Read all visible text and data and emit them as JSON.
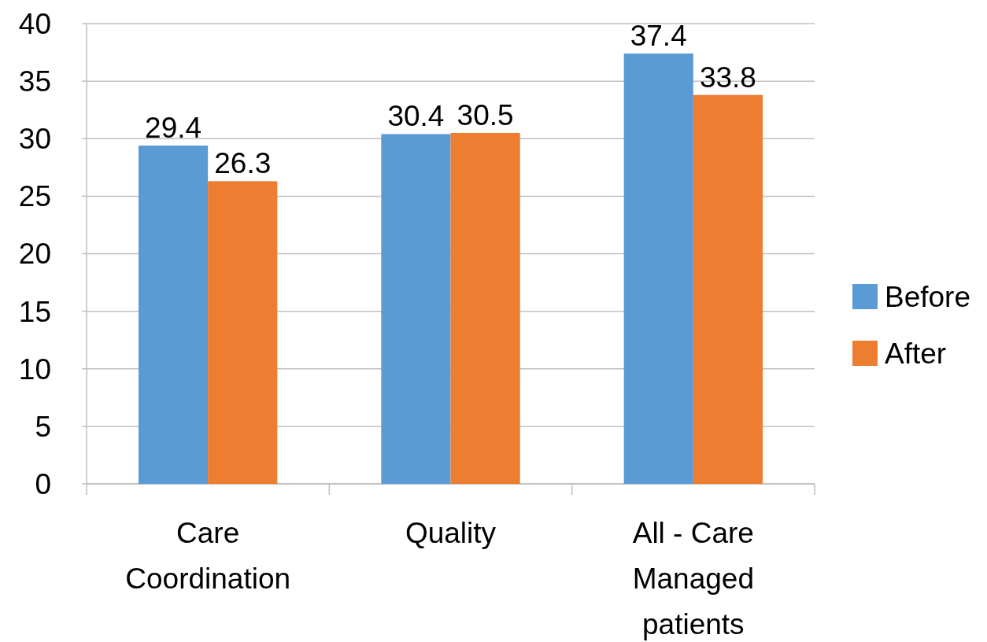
{
  "chart_data": {
    "type": "bar",
    "categories": [
      "Care Coordination",
      "Quality",
      "All - Care Managed patients"
    ],
    "series": [
      {
        "name": "Before",
        "color": "#5b9bd5",
        "values": [
          29.4,
          30.4,
          37.4
        ]
      },
      {
        "name": "After",
        "color": "#ed7d31",
        "values": [
          26.3,
          30.5,
          33.8
        ]
      }
    ],
    "ylim": [
      0,
      40
    ],
    "yticks": [
      0,
      5,
      10,
      15,
      20,
      25,
      30,
      35,
      40
    ],
    "grid": "y",
    "legend": "right",
    "data_labels": true
  }
}
